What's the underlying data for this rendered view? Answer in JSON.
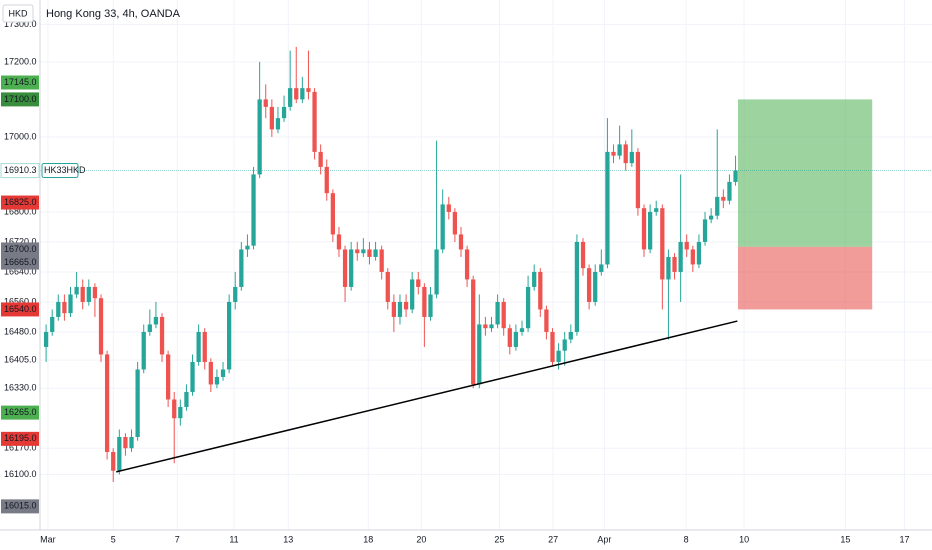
{
  "chart_data": {
    "type": "candlestick",
    "title": "Hong Kong 33, 4h, OANDA",
    "currency": "HKD",
    "up_color": "#26a69a",
    "down_color": "#ef5350",
    "grid": true,
    "ylim": [
      15952,
      17365
    ],
    "xlim": [
      -1,
      145.2
    ],
    "yticks": [
      {
        "value": 17300,
        "label": "17300.0"
      },
      {
        "value": 17200,
        "label": "17200.0"
      },
      {
        "value": 17000,
        "label": "17000.0"
      },
      {
        "value": 16800,
        "label": "16800.0"
      },
      {
        "value": 16720,
        "label": "16720.0"
      },
      {
        "value": 16640,
        "label": "16640.0"
      },
      {
        "value": 16560,
        "label": "16560.0"
      },
      {
        "value": 16480,
        "label": "16480.0"
      },
      {
        "value": 16405,
        "label": "16405.0"
      },
      {
        "value": 16330,
        "label": "16330.0"
      },
      {
        "value": 16170,
        "label": "16170.0"
      },
      {
        "value": 16100,
        "label": "16100.0"
      }
    ],
    "xticks": [
      {
        "value": 0.3,
        "label": "Mar"
      },
      {
        "value": 11,
        "label": "5"
      },
      {
        "value": 21.5,
        "label": "7"
      },
      {
        "value": 30.8,
        "label": "11"
      },
      {
        "value": 39.7,
        "label": "13"
      },
      {
        "value": 52.8,
        "label": "18"
      },
      {
        "value": 61.5,
        "label": "20"
      },
      {
        "value": 74.3,
        "label": "25"
      },
      {
        "value": 83.1,
        "label": "27"
      },
      {
        "value": 91.5,
        "label": "Apr"
      },
      {
        "value": 104.9,
        "label": "8"
      },
      {
        "value": 114.4,
        "label": "10"
      },
      {
        "value": 131,
        "label": "15"
      },
      {
        "value": 140.7,
        "label": "17"
      }
    ],
    "candles": {
      "open": [
        16440,
        16480,
        16520,
        16560,
        16530,
        16580,
        16600,
        16560,
        16600,
        16570,
        16420,
        16160,
        16110,
        16200,
        16170,
        16200,
        16380,
        16480,
        16500,
        16520,
        16420,
        16300,
        16250,
        16280,
        16320,
        16400,
        16480,
        16400,
        16340,
        16360,
        16380,
        16560,
        16600,
        16700,
        16710,
        16900,
        17100,
        17080,
        17020,
        17050,
        17080,
        17130,
        17100,
        17130,
        17120,
        16960,
        16920,
        16850,
        16740,
        16700,
        16600,
        16700,
        16690,
        16700,
        16680,
        16700,
        16640,
        16560,
        16520,
        16560,
        16540,
        16620,
        16600,
        16520,
        16580,
        16700,
        16820,
        16800,
        16740,
        16700,
        16620,
        16340,
        16500,
        16490,
        16500,
        16560,
        16490,
        16440,
        16480,
        16490,
        16600,
        16640,
        16540,
        16480,
        16400,
        16430,
        16460,
        16480,
        16720,
        16650,
        16560,
        16640,
        16660,
        16960,
        16950,
        16980,
        16930,
        16960,
        16810,
        16700,
        16800,
        16810,
        16620,
        16680,
        16640,
        16720,
        16700,
        16660,
        16720,
        16780,
        16790,
        16840,
        16830,
        16880
      ],
      "high": [
        16500,
        16540,
        16580,
        16580,
        16600,
        16640,
        16620,
        16620,
        16610,
        16580,
        16430,
        16170,
        16220,
        16210,
        16220,
        16400,
        16500,
        16540,
        16560,
        16530,
        16430,
        16320,
        16300,
        16340,
        16420,
        16500,
        16490,
        16410,
        16380,
        16400,
        16580,
        16640,
        16720,
        16740,
        16920,
        17200,
        17140,
        17100,
        17080,
        17110,
        17230,
        17240,
        17160,
        17230,
        17130,
        16980,
        16940,
        16860,
        16760,
        16710,
        16720,
        16720,
        16730,
        16720,
        16720,
        16710,
        16650,
        16580,
        16580,
        16580,
        16640,
        16640,
        16610,
        16600,
        16990,
        16860,
        16840,
        16810,
        16760,
        16710,
        16630,
        16580,
        16520,
        16520,
        16580,
        16570,
        16500,
        16500,
        16510,
        16630,
        16660,
        16650,
        16550,
        16490,
        16450,
        16480,
        16500,
        16740,
        16730,
        16660,
        16660,
        16700,
        17050,
        16980,
        17030,
        16990,
        17020,
        16970,
        16820,
        16820,
        16830,
        16820,
        16700,
        16690,
        16900,
        16740,
        16710,
        16740,
        16800,
        16810,
        17020,
        16860,
        16900,
        16950
      ],
      "low": [
        16400,
        16470,
        16510,
        16510,
        16520,
        16570,
        16540,
        16550,
        16520,
        16400,
        16140,
        16080,
        16100,
        16150,
        16160,
        16190,
        16370,
        16470,
        16490,
        16400,
        16280,
        16130,
        16230,
        16270,
        16310,
        16390,
        16380,
        16320,
        16330,
        16350,
        16370,
        16540,
        16590,
        16680,
        16700,
        16890,
        17050,
        17000,
        17010,
        17040,
        17070,
        17090,
        17090,
        17100,
        16940,
        16900,
        16830,
        16720,
        16680,
        16560,
        16590,
        16670,
        16680,
        16660,
        16670,
        16620,
        16540,
        16480,
        16500,
        16520,
        16530,
        16580,
        16440,
        16510,
        16570,
        16690,
        16780,
        16720,
        16680,
        16600,
        16330,
        16330,
        16470,
        16480,
        16490,
        16470,
        16420,
        16430,
        16470,
        16480,
        16590,
        16520,
        16460,
        16390,
        16380,
        16390,
        16450,
        16470,
        16630,
        16540,
        16550,
        16630,
        16650,
        16930,
        16940,
        16910,
        16920,
        16790,
        16680,
        16690,
        16790,
        16540,
        16460,
        16620,
        16560,
        16680,
        16640,
        16650,
        16710,
        16770,
        16780,
        16810,
        16820,
        16870
      ],
      "close": [
        16480,
        16520,
        16560,
        16530,
        16580,
        16600,
        16560,
        16600,
        16570,
        16420,
        16160,
        16110,
        16200,
        16170,
        16200,
        16380,
        16480,
        16500,
        16520,
        16420,
        16300,
        16250,
        16280,
        16320,
        16400,
        16480,
        16400,
        16340,
        16360,
        16380,
        16560,
        16600,
        16700,
        16710,
        16900,
        17100,
        17080,
        17020,
        17050,
        17080,
        17130,
        17100,
        17130,
        17120,
        16960,
        16920,
        16850,
        16740,
        16700,
        16600,
        16700,
        16690,
        16700,
        16680,
        16700,
        16640,
        16560,
        16520,
        16560,
        16540,
        16620,
        16600,
        16520,
        16580,
        16700,
        16820,
        16800,
        16740,
        16700,
        16620,
        16340,
        16500,
        16490,
        16500,
        16560,
        16490,
        16440,
        16480,
        16490,
        16600,
        16640,
        16540,
        16480,
        16400,
        16430,
        16460,
        16480,
        16720,
        16650,
        16560,
        16640,
        16660,
        16960,
        16950,
        16980,
        16930,
        16960,
        16810,
        16700,
        16800,
        16810,
        16620,
        16680,
        16640,
        16720,
        16700,
        16660,
        16720,
        16780,
        16790,
        16840,
        16830,
        16880,
        16910.3
      ]
    },
    "trendline": {
      "x": [
        11.5,
        113.3
      ],
      "y": [
        16107,
        16509
      ],
      "color": "#000000"
    },
    "position": {
      "x": [
        113.4,
        135.4
      ],
      "target": 17100,
      "entry": 16707,
      "stop": 16540,
      "profit_color": "#4caf50",
      "loss_color": "#e53935"
    },
    "last_price": {
      "value": 16910.3,
      "label": "16910.3",
      "symbol": "HK33HKD",
      "color": "#26a69a"
    },
    "price_tags": [
      {
        "value": 17145,
        "label": "17145.0",
        "color": "#4caf50"
      },
      {
        "value": 17100,
        "label": "17100.0",
        "color": "#388e3c"
      },
      {
        "value": 16825,
        "label": "16825.0",
        "color": "#e53935"
      },
      {
        "value": 16700,
        "label": "16700.0",
        "color": "#787b86"
      },
      {
        "value": 16665,
        "label": "16665.0",
        "color": "#787b86"
      },
      {
        "value": 16540,
        "label": "16540.0",
        "color": "#e53935"
      },
      {
        "value": 16265,
        "label": "16265.0",
        "color": "#4caf50"
      },
      {
        "value": 16195,
        "label": "16195.0",
        "color": "#e53935"
      },
      {
        "value": 16015,
        "label": "16015.0",
        "color": "#787b86"
      }
    ]
  }
}
